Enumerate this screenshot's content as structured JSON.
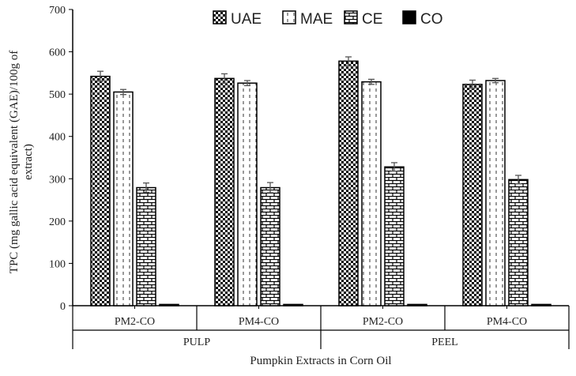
{
  "chart_data": {
    "type": "bar",
    "ylabel": "TPC (mg gallic acid equivalent (GAE)/100g of extract)",
    "ylabel_lines": [
      "TPC (mg gallic acid equivalent (GAE)/100g of",
      "extract)"
    ],
    "xlabel": "Pumpkin Extracts in Corn Oil",
    "ylim": [
      0,
      700
    ],
    "yticks": [
      0,
      100,
      200,
      300,
      400,
      500,
      600,
      700
    ],
    "categories": [
      "PM2-CO",
      "PM4-CO",
      "PM2-CO",
      "PM4-CO"
    ],
    "category_groups": [
      {
        "label": "PULP",
        "span": [
          0,
          1
        ]
      },
      {
        "label": "PEEL",
        "span": [
          2,
          3
        ]
      }
    ],
    "legend_position": "top",
    "series": [
      {
        "name": "UAE",
        "pattern": "checkerboard",
        "values": [
          542,
          537,
          578,
          523
        ],
        "errors": [
          12,
          11,
          10,
          10
        ]
      },
      {
        "name": "MAE",
        "pattern": "dashed-vertical",
        "values": [
          505,
          526,
          529,
          532
        ],
        "errors": [
          6,
          6,
          6,
          5
        ]
      },
      {
        "name": "CE",
        "pattern": "brick",
        "values": [
          279,
          279,
          328,
          298
        ],
        "errors": [
          11,
          12,
          10,
          10
        ]
      },
      {
        "name": "CO",
        "pattern": "solid-black",
        "values": [
          3,
          3,
          3,
          3
        ],
        "errors": [
          0,
          0,
          0,
          0
        ]
      }
    ]
  }
}
